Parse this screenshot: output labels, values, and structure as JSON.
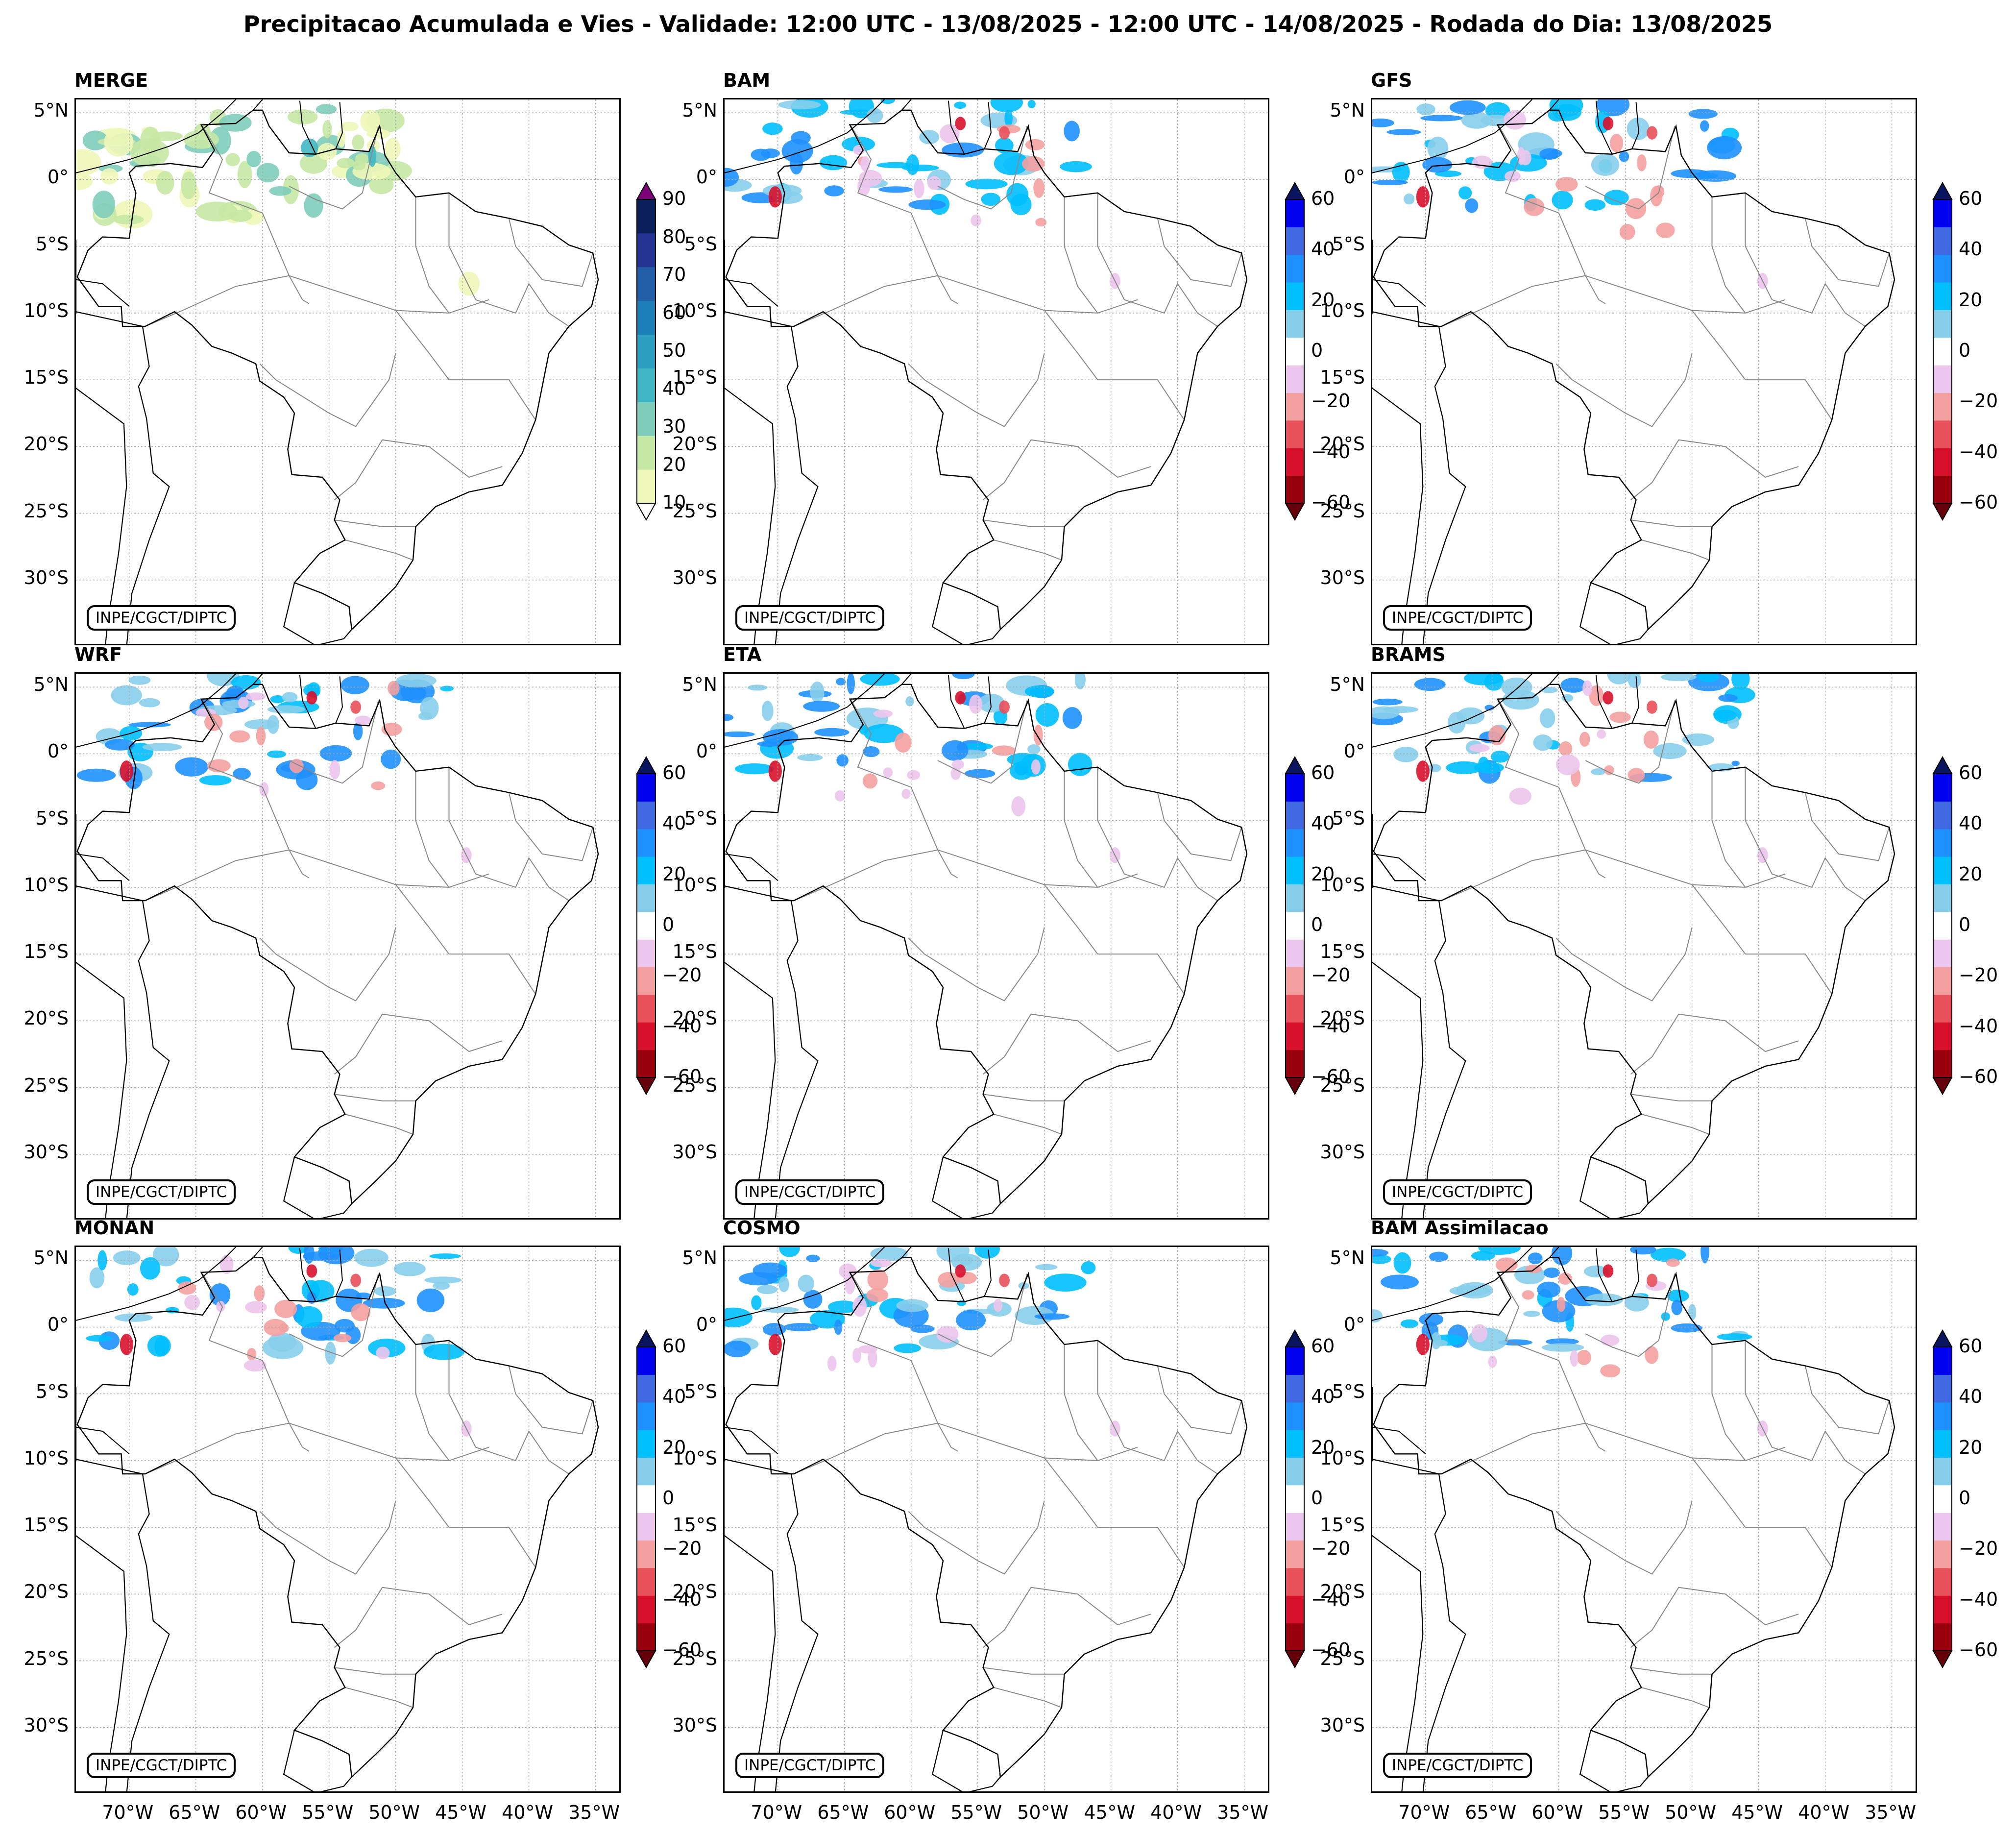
{
  "title": "Precipitacao Acumulada e Vies - Validade: 12:00 UTC - 13/08/2025 - 12:00 UTC - 14/08/2025 - Rodada do Dia: 13/08/2025",
  "credit": "INPE/CGCT/DIPTC",
  "lat_labels": [
    "5°N",
    "0°",
    "5°S",
    "10°S",
    "15°S",
    "20°S",
    "25°S",
    "30°S"
  ],
  "lon_labels": [
    "70°W",
    "65°W",
    "60°W",
    "55°W",
    "50°W",
    "45°W",
    "40°W",
    "35°W"
  ],
  "map_extent": {
    "lon_min": -74,
    "lon_max": -33,
    "lat_min": -35,
    "lat_max": 6
  },
  "precip_colorbar": {
    "ticks": [
      "90",
      "80",
      "70",
      "60",
      "50",
      "40",
      "30",
      "20",
      "10"
    ],
    "levels": [
      10,
      20,
      30,
      40,
      50,
      60,
      70,
      80,
      90
    ],
    "colors": [
      "#eef7b8",
      "#c6e8a5",
      "#7ecdbb",
      "#41b6c4",
      "#2c9fc0",
      "#1d7fb8",
      "#225ea8",
      "#253494",
      "#0b1f5c"
    ],
    "over_color": "#7a0177",
    "under_color": "#ffffff"
  },
  "bias_colorbar": {
    "ticks": [
      "60",
      "40",
      "20",
      "0",
      "−20",
      "−40",
      "−60"
    ],
    "levels": [
      -60,
      -50,
      -40,
      -30,
      -20,
      -10,
      10,
      20,
      30,
      40,
      50,
      60
    ],
    "colors": [
      "#99000d",
      "#d7102b",
      "#e8505a",
      "#f4a0a0",
      "#ecc5ec",
      "#ffffff",
      "#87ceeb",
      "#00bfff",
      "#1e90ff",
      "#4169e1",
      "#0000ee"
    ],
    "over_color": "#0a1560",
    "under_color": "#66000a"
  },
  "panels": [
    {
      "title": "MERGE",
      "kind": "precip"
    },
    {
      "title": "BAM",
      "kind": "bias"
    },
    {
      "title": "GFS",
      "kind": "bias"
    },
    {
      "title": "WRF",
      "kind": "bias"
    },
    {
      "title": "ETA",
      "kind": "bias"
    },
    {
      "title": "BRAMS",
      "kind": "bias"
    },
    {
      "title": "MONAN",
      "kind": "bias"
    },
    {
      "title": "COSMO",
      "kind": "bias"
    },
    {
      "title": "BAM Assimilacao",
      "kind": "bias"
    }
  ],
  "colors": {
    "border": "#000000",
    "states": "#888888",
    "grid": "#aaaaaa"
  }
}
